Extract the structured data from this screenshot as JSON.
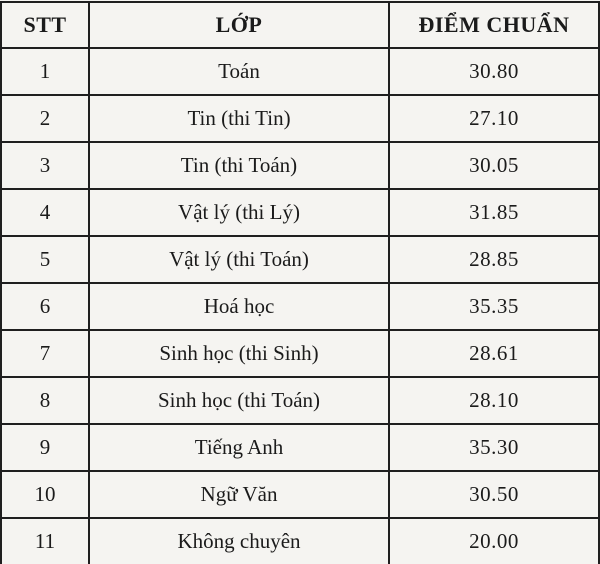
{
  "document": {
    "type": "scanned-table",
    "language": "vi"
  },
  "colors": {
    "paper_background": "#f5f4f1",
    "border": "#1f1f1f",
    "text": "#1b1b1b"
  },
  "table": {
    "header": {
      "stt": "STT",
      "lop": "LỚP",
      "diem_chuan": "ĐIỂM CHUẨN"
    },
    "rows": [
      {
        "stt": "1",
        "lop": "Toán",
        "diem": "30.80"
      },
      {
        "stt": "2",
        "lop": "Tin (thi Tin)",
        "diem": "27.10"
      },
      {
        "stt": "3",
        "lop": "Tin (thi Toán)",
        "diem": "30.05"
      },
      {
        "stt": "4",
        "lop": "Vật lý (thi Lý)",
        "diem": "31.85"
      },
      {
        "stt": "5",
        "lop": "Vật lý (thi Toán)",
        "diem": "28.85"
      },
      {
        "stt": "6",
        "lop": "Hoá học",
        "diem": "35.35"
      },
      {
        "stt": "7",
        "lop": "Sinh học (thi Sinh)",
        "diem": "28.61"
      },
      {
        "stt": "8",
        "lop": "Sinh học (thi Toán)",
        "diem": "28.10"
      },
      {
        "stt": "9",
        "lop": "Tiếng Anh",
        "diem": "35.30"
      },
      {
        "stt": "10",
        "lop": "Ngữ Văn",
        "diem": "30.50"
      },
      {
        "stt": "11",
        "lop": "Không chuyên",
        "diem": "20.00"
      }
    ]
  }
}
